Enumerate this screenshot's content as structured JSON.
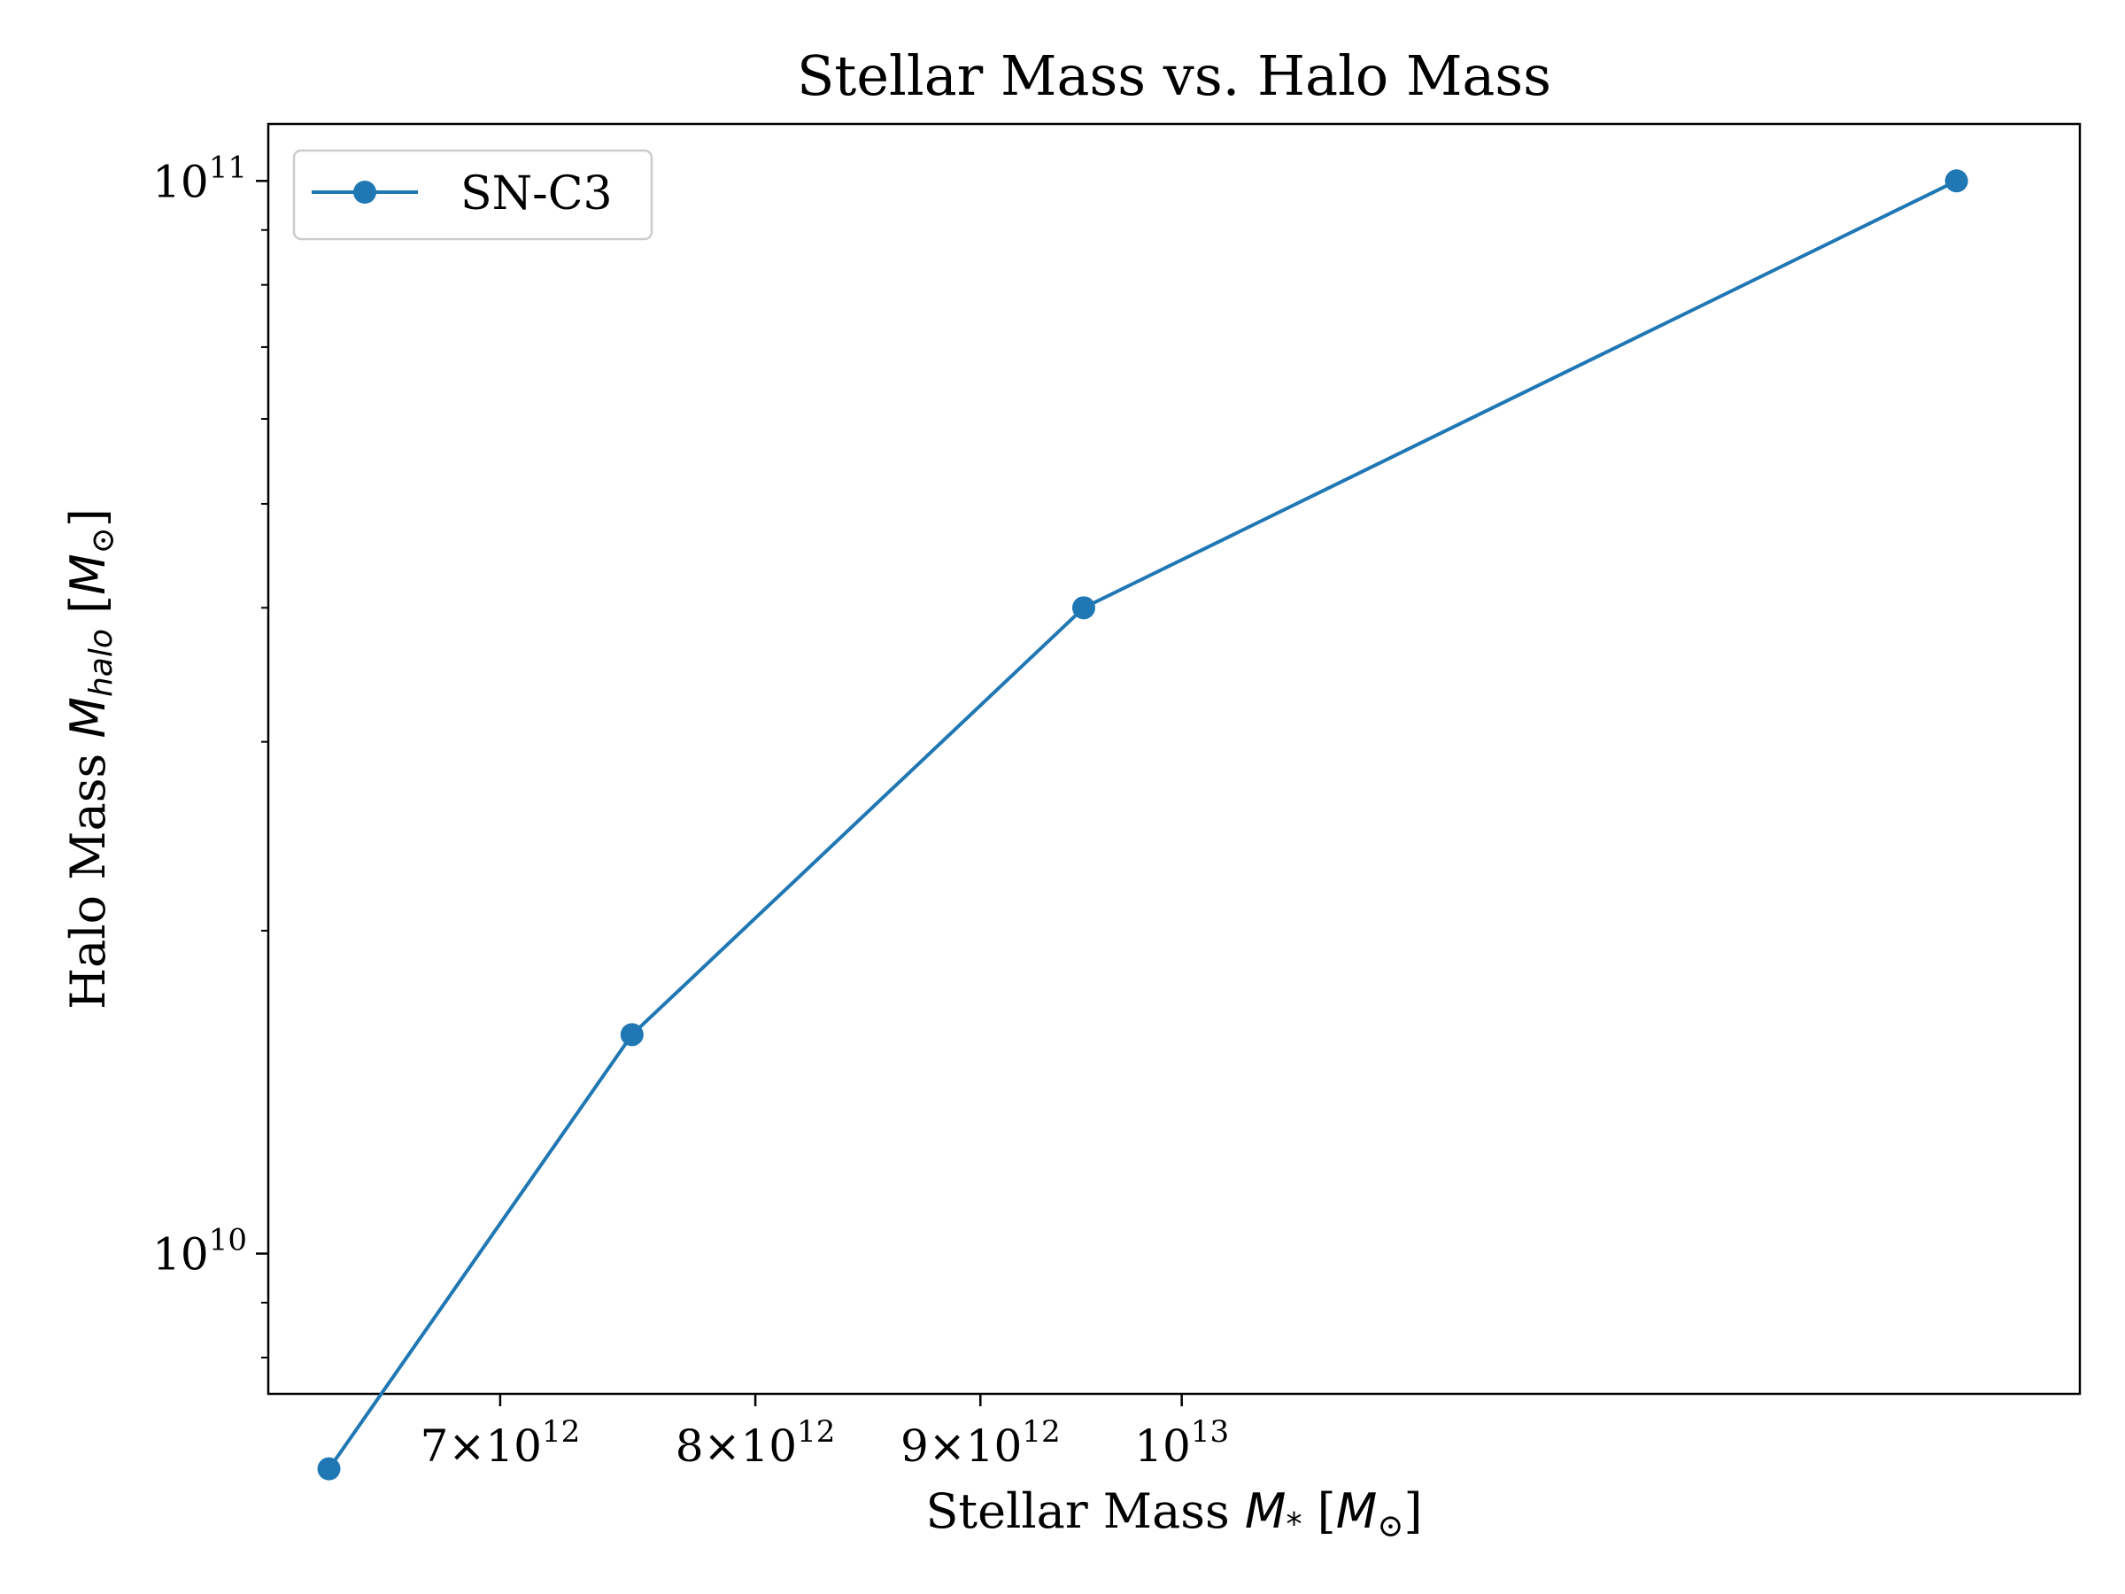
{
  "chart_data": {
    "type": "line",
    "title": "Stellar Mass vs. Halo Mass",
    "xlabel": {
      "prefix": "Stellar Mass ",
      "symbol": "M",
      "subscript": "*",
      "unit_open": " [",
      "unit_symbol": "M",
      "unit_subscript": "⊙",
      "unit_close": "]"
    },
    "ylabel": {
      "prefix": "Halo Mass ",
      "symbol": "M",
      "subscript": "halo",
      "unit_open": " [",
      "unit_symbol": "M",
      "unit_subscript": "⊙",
      "unit_close": "]"
    },
    "xscale": "log",
    "yscale": "log",
    "xlim": [
      6200000000000.0,
      16000000000000.0
    ],
    "ylim": [
      7400000000.0,
      113000000000.0
    ],
    "x_ticks": [
      {
        "value": 7000000000000.0,
        "mantissa": "7",
        "times": "×",
        "base": "10",
        "exp": "12"
      },
      {
        "value": 8000000000000.0,
        "mantissa": "8",
        "times": "×",
        "base": "10",
        "exp": "12"
      },
      {
        "value": 9000000000000.0,
        "mantissa": "9",
        "times": "×",
        "base": "10",
        "exp": "12"
      },
      {
        "value": 10000000000000.0,
        "mantissa": "",
        "times": "",
        "base": "10",
        "exp": "13"
      }
    ],
    "y_ticks": [
      {
        "value": 10000000000.0,
        "base": "10",
        "exp": "10"
      },
      {
        "value": 100000000000.0,
        "base": "10",
        "exp": "11"
      }
    ],
    "series": [
      {
        "name": "SN-C3",
        "color": "#1f77b4",
        "x": [
          6400000000000.0,
          7500000000000.0,
          9500000000000.0,
          15000000000000.0
        ],
        "y": [
          6300000000.0,
          16000000000.0,
          40000000000.0,
          100000000000.0
        ]
      }
    ],
    "legend_position": "top-left",
    "grid": false
  }
}
